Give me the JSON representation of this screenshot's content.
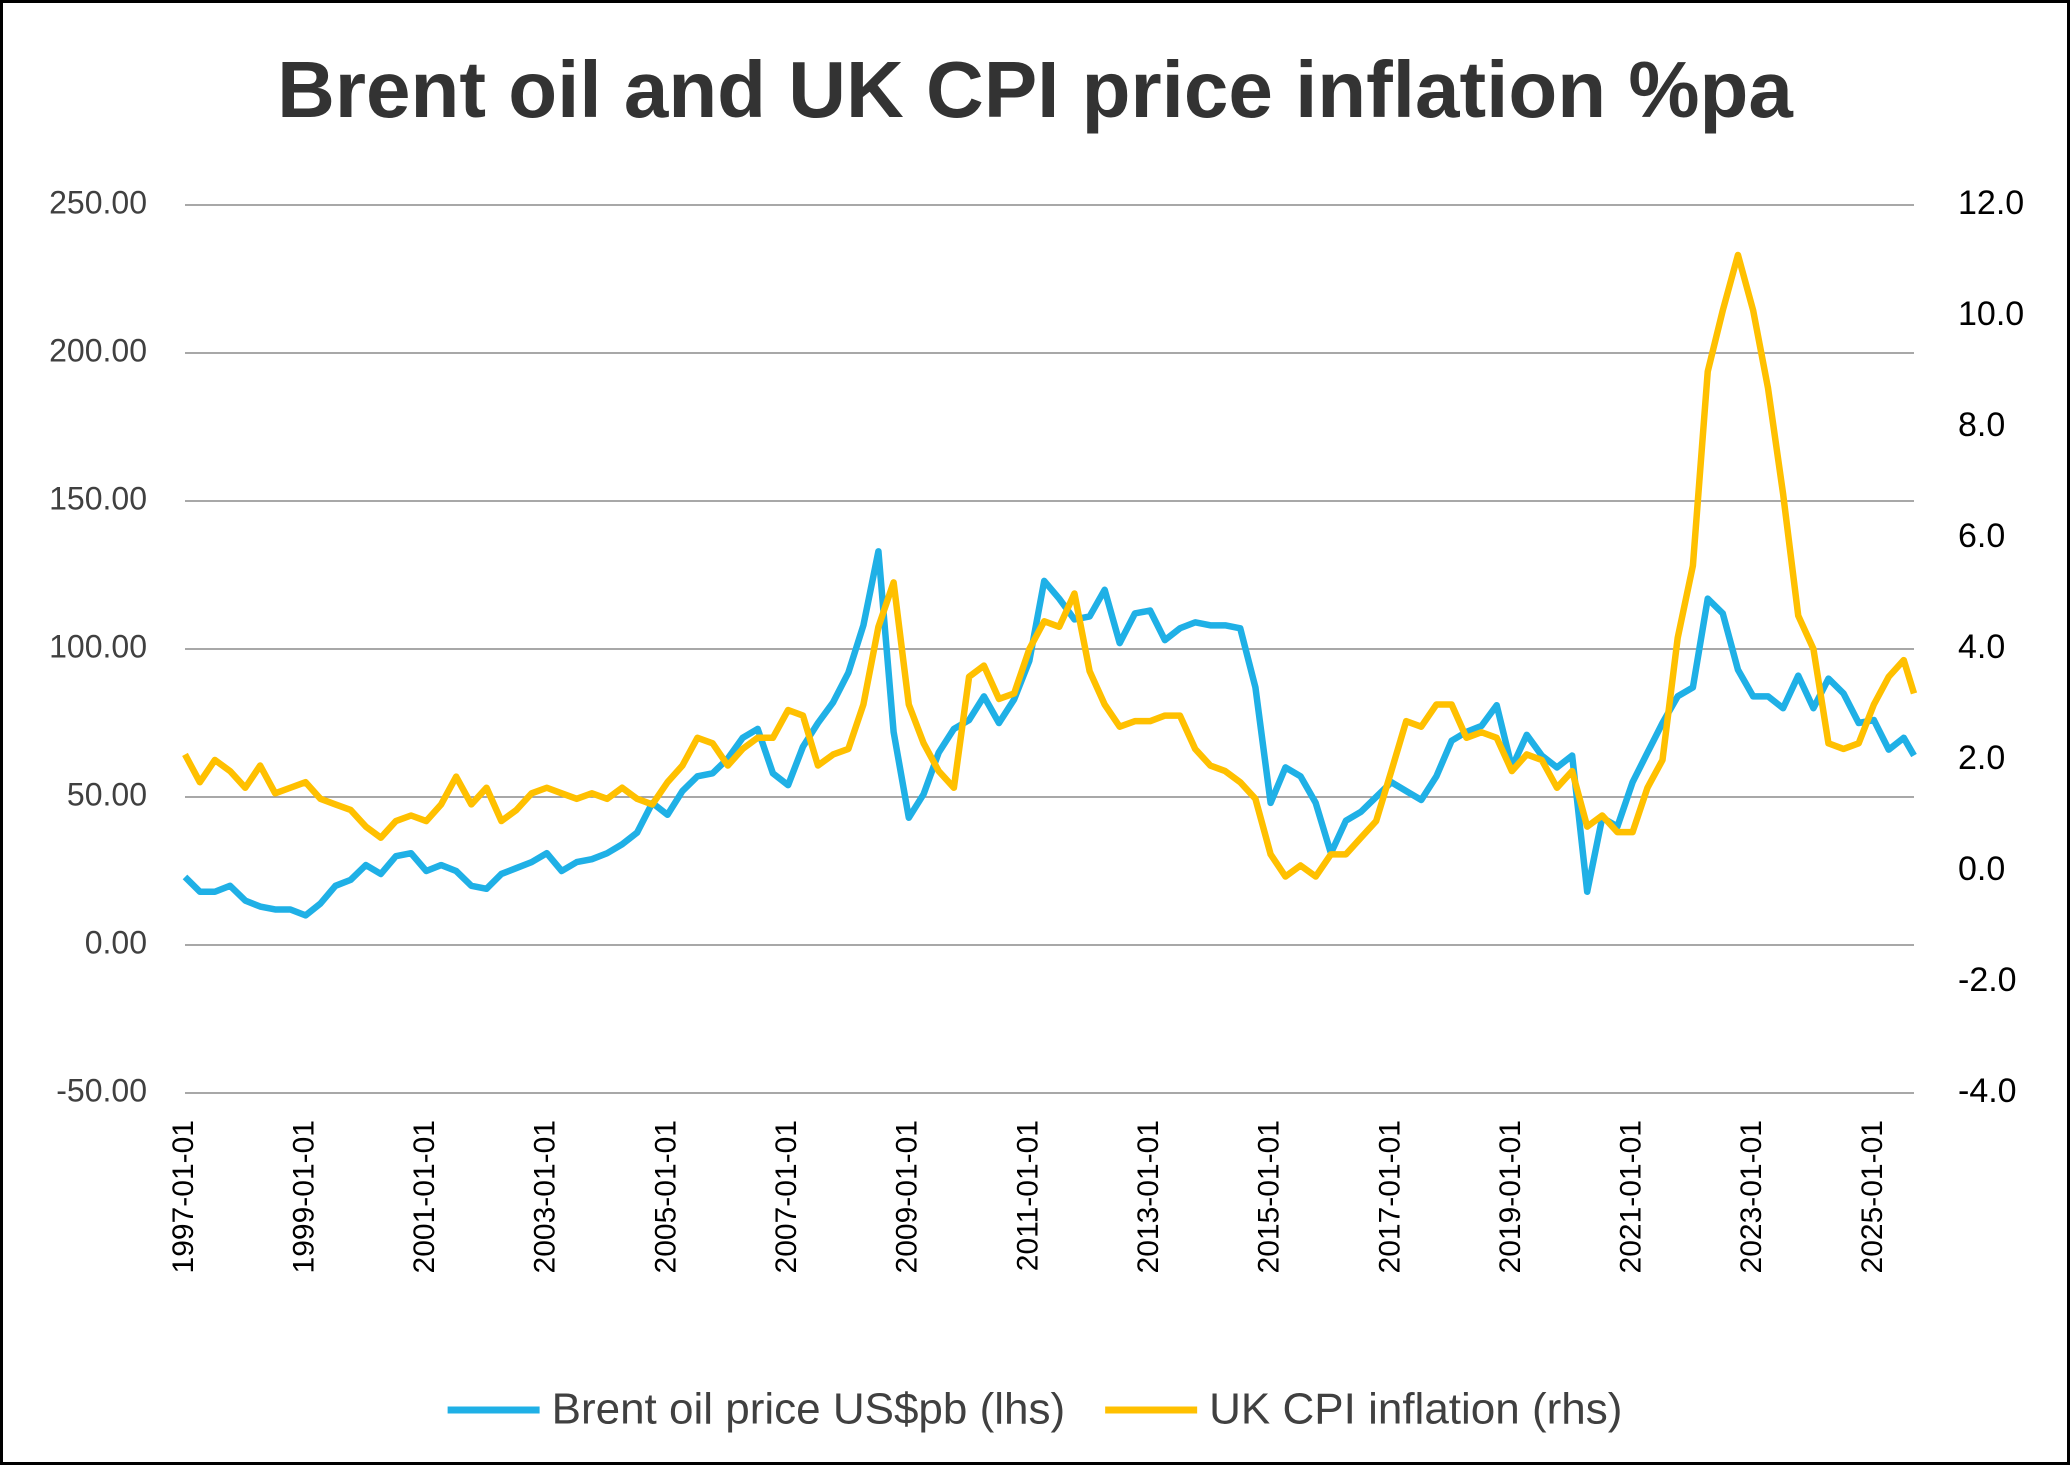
{
  "chart_data": {
    "type": "line",
    "title": "Brent oil and UK CPI price inflation %pa",
    "x": [
      "1997-01-01",
      "1997-04-01",
      "1997-07-01",
      "1997-10-01",
      "1998-01-01",
      "1998-04-01",
      "1998-07-01",
      "1998-10-01",
      "1999-01-01",
      "1999-04-01",
      "1999-07-01",
      "1999-10-01",
      "2000-01-01",
      "2000-04-01",
      "2000-07-01",
      "2000-10-01",
      "2001-01-01",
      "2001-04-01",
      "2001-07-01",
      "2001-10-01",
      "2002-01-01",
      "2002-04-01",
      "2002-07-01",
      "2002-10-01",
      "2003-01-01",
      "2003-04-01",
      "2003-07-01",
      "2003-10-01",
      "2004-01-01",
      "2004-04-01",
      "2004-07-01",
      "2004-10-01",
      "2005-01-01",
      "2005-04-01",
      "2005-07-01",
      "2005-10-01",
      "2006-01-01",
      "2006-04-01",
      "2006-07-01",
      "2006-10-01",
      "2007-01-01",
      "2007-04-01",
      "2007-07-01",
      "2007-10-01",
      "2008-01-01",
      "2008-04-01",
      "2008-07-01",
      "2008-10-01",
      "2009-01-01",
      "2009-04-01",
      "2009-07-01",
      "2009-10-01",
      "2010-01-01",
      "2010-04-01",
      "2010-07-01",
      "2010-10-01",
      "2011-01-01",
      "2011-04-01",
      "2011-07-01",
      "2011-10-01",
      "2012-01-01",
      "2012-04-01",
      "2012-07-01",
      "2012-10-01",
      "2013-01-01",
      "2013-04-01",
      "2013-07-01",
      "2013-10-01",
      "2014-01-01",
      "2014-04-01",
      "2014-07-01",
      "2014-10-01",
      "2015-01-01",
      "2015-04-01",
      "2015-07-01",
      "2015-10-01",
      "2016-01-01",
      "2016-04-01",
      "2016-07-01",
      "2016-10-01",
      "2017-01-01",
      "2017-04-01",
      "2017-07-01",
      "2017-10-01",
      "2018-01-01",
      "2018-04-01",
      "2018-07-01",
      "2018-10-01",
      "2019-01-01",
      "2019-04-01",
      "2019-07-01",
      "2019-10-01",
      "2020-01-01",
      "2020-04-01",
      "2020-07-01",
      "2020-10-01",
      "2021-01-01",
      "2021-04-01",
      "2021-07-01",
      "2021-10-01",
      "2022-01-01",
      "2022-04-01",
      "2022-07-01",
      "2022-10-01",
      "2023-01-01",
      "2023-04-01",
      "2023-07-01",
      "2023-10-01",
      "2024-01-01",
      "2024-04-01",
      "2024-07-01",
      "2024-10-01",
      "2025-01-01",
      "2025-04-01",
      "2025-07-01",
      "2025-09-01"
    ],
    "series": [
      {
        "name": "Brent oil price US$pb (lhs)",
        "color": "#1fb0e6",
        "axis": "y",
        "values": [
          23,
          18,
          18,
          20,
          15,
          13,
          12,
          12,
          10,
          14,
          20,
          22,
          27,
          24,
          30,
          31,
          25,
          27,
          25,
          20,
          19,
          24,
          26,
          28,
          31,
          25,
          28,
          29,
          31,
          34,
          38,
          48,
          44,
          52,
          57,
          58,
          63,
          70,
          73,
          58,
          54,
          67,
          75,
          82,
          92,
          108,
          133,
          72,
          43,
          51,
          65,
          73,
          76,
          84,
          75,
          83,
          96,
          123,
          117,
          110,
          111,
          120,
          102,
          112,
          113,
          103,
          107,
          109,
          108,
          108,
          107,
          87,
          48,
          60,
          57,
          48,
          31,
          42,
          45,
          50,
          55,
          52,
          49,
          57,
          69,
          72,
          74,
          81,
          60,
          71,
          64,
          60,
          64,
          18,
          43,
          40,
          55,
          65,
          75,
          84,
          87,
          117,
          112,
          93,
          84,
          84,
          80,
          91,
          80,
          90,
          85,
          75,
          76,
          66,
          70,
          64
        ]
      },
      {
        "name": "UK CPI inflation (rhs)",
        "color": "#ffc000",
        "axis": "y2",
        "values": [
          2.1,
          1.6,
          2.0,
          1.8,
          1.5,
          1.9,
          1.4,
          1.5,
          1.6,
          1.3,
          1.2,
          1.1,
          0.8,
          0.6,
          0.9,
          1.0,
          0.9,
          1.2,
          1.7,
          1.2,
          1.5,
          0.9,
          1.1,
          1.4,
          1.5,
          1.4,
          1.3,
          1.4,
          1.3,
          1.5,
          1.3,
          1.2,
          1.6,
          1.9,
          2.4,
          2.3,
          1.9,
          2.2,
          2.4,
          2.4,
          2.9,
          2.8,
          1.9,
          2.1,
          2.2,
          3.0,
          4.4,
          5.2,
          3.0,
          2.3,
          1.8,
          1.5,
          3.5,
          3.7,
          3.1,
          3.2,
          4.0,
          4.5,
          4.4,
          5.0,
          3.6,
          3.0,
          2.6,
          2.7,
          2.7,
          2.8,
          2.8,
          2.2,
          1.9,
          1.8,
          1.6,
          1.3,
          0.3,
          -0.1,
          0.1,
          -0.1,
          0.3,
          0.3,
          0.6,
          0.9,
          1.8,
          2.7,
          2.6,
          3.0,
          3.0,
          2.4,
          2.5,
          2.4,
          1.8,
          2.1,
          2.0,
          1.5,
          1.8,
          0.8,
          1.0,
          0.7,
          0.7,
          1.5,
          2.0,
          4.2,
          5.5,
          9.0,
          10.1,
          11.1,
          10.1,
          8.7,
          6.8,
          4.6,
          4.0,
          2.3,
          2.2,
          2.3,
          3.0,
          3.5,
          3.8,
          3.2
        ]
      }
    ],
    "xlim": [
      "1997-01-01",
      "2025-09-01"
    ],
    "xticks": [
      "1997-01-01",
      "1999-01-01",
      "2001-01-01",
      "2003-01-01",
      "2005-01-01",
      "2007-01-01",
      "2009-01-01",
      "2011-01-01",
      "2013-01-01",
      "2015-01-01",
      "2017-01-01",
      "2019-01-01",
      "2021-01-01",
      "2023-01-01",
      "2025-01-01"
    ],
    "ylim": [
      -50,
      250
    ],
    "yticks": [
      {
        "value": -50,
        "label": "-50.00"
      },
      {
        "value": 0,
        "label": "0.00"
      },
      {
        "value": 50,
        "label": "50.00"
      },
      {
        "value": 100,
        "label": "100.00"
      },
      {
        "value": 150,
        "label": "150.00"
      },
      {
        "value": 200,
        "label": "200.00"
      },
      {
        "value": 250,
        "label": "250.00"
      }
    ],
    "y2lim": [
      -4,
      12
    ],
    "y2ticks": [
      {
        "value": -4,
        "label": "-4.0"
      },
      {
        "value": -2,
        "label": "-2.0"
      },
      {
        "value": 0,
        "label": "0.0"
      },
      {
        "value": 2,
        "label": "2.0"
      },
      {
        "value": 4,
        "label": "4.0"
      },
      {
        "value": 6,
        "label": "6.0"
      },
      {
        "value": 8,
        "label": "8.0"
      },
      {
        "value": 10,
        "label": "10.0"
      },
      {
        "value": 12,
        "label": "12.0"
      }
    ],
    "grid": true,
    "legend": "bottom"
  }
}
